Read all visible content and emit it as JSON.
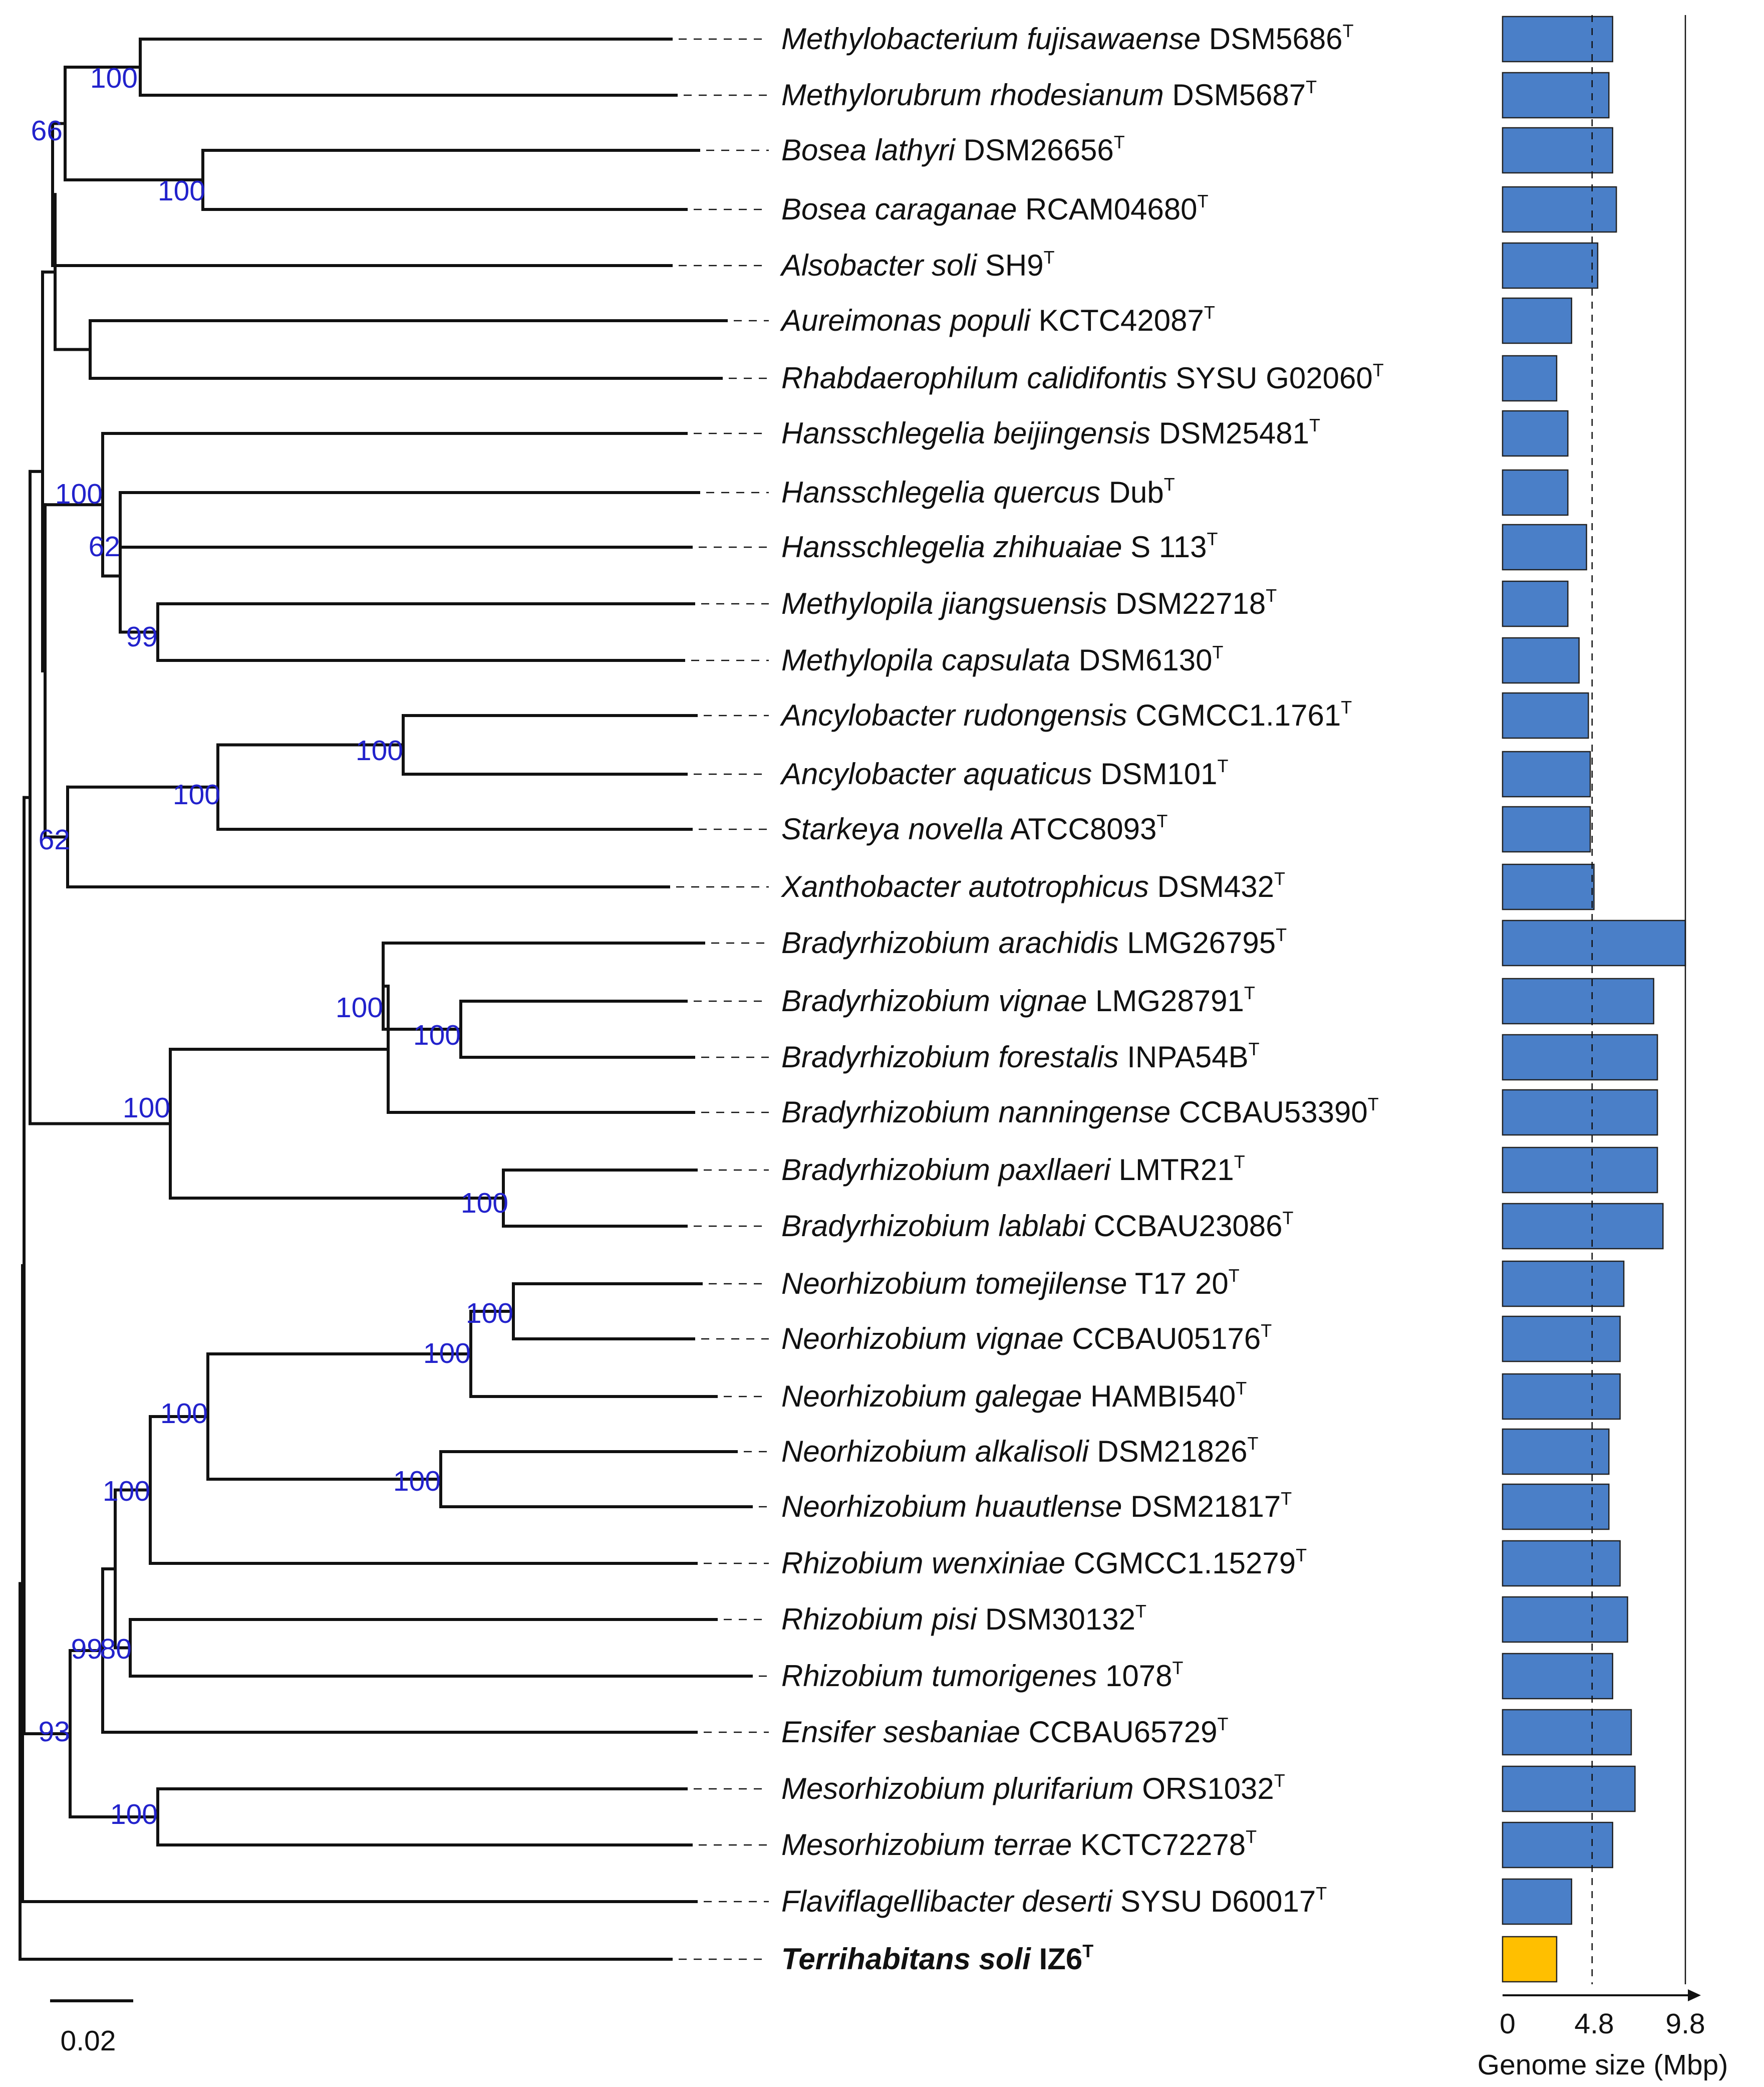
{
  "figure": {
    "scale_bar_label": "0.02",
    "bar_axis_label": "Genome size (Mbp)",
    "bar_ticks": [
      "0",
      "4.8",
      "9.8"
    ],
    "bar_reference_mbp": 4.8,
    "bar_max_mbp": 9.8,
    "default_bar_color": "#4a7fc8",
    "highlight_bar_color": "#ffbf00"
  },
  "taxa": [
    {
      "species": "Methylobacterium fujisawaense",
      "strain": "DSM5686",
      "type": "T",
      "genome_mbp": 5.9
    },
    {
      "species": "Methylorubrum rhodesianum",
      "strain": "DSM5687",
      "type": "T",
      "genome_mbp": 5.7
    },
    {
      "species": "Bosea lathyri",
      "strain": "DSM26656",
      "type": "T",
      "genome_mbp": 5.9
    },
    {
      "species": "Bosea caraganae",
      "strain": "RCAM04680",
      "type": "T",
      "genome_mbp": 6.1
    },
    {
      "species": "Alsobacter soli",
      "strain": "SH9",
      "type": "T",
      "genome_mbp": 5.1
    },
    {
      "species": "Aureimonas populi",
      "strain": "KCTC42087",
      "type": "T",
      "genome_mbp": 3.7
    },
    {
      "species": "Rhabdaerophilum calidifontis",
      "strain": "SYSU G02060",
      "type": "T",
      "genome_mbp": 2.9
    },
    {
      "species": "Hansschlegelia beijingensis",
      "strain": "DSM25481",
      "type": "T",
      "genome_mbp": 3.5
    },
    {
      "species": "Hansschlegelia quercus",
      "strain": "Dub",
      "type": "T",
      "genome_mbp": 3.5
    },
    {
      "species": "Hansschlegelia zhihuaiae",
      "strain": "S 113",
      "type": "T",
      "genome_mbp": 4.5
    },
    {
      "species": "Methylopila jiangsuensis",
      "strain": "DSM22718",
      "type": "T",
      "genome_mbp": 3.5
    },
    {
      "species": "Methylopila capsulata",
      "strain": "DSM6130",
      "type": "T",
      "genome_mbp": 4.1
    },
    {
      "species": "Ancylobacter rudongensis",
      "strain": "CGMCC1.1761",
      "type": "T",
      "genome_mbp": 4.6
    },
    {
      "species": "Ancylobacter aquaticus",
      "strain": "DSM101",
      "type": "T",
      "genome_mbp": 4.7
    },
    {
      "species": "Starkeya novella",
      "strain": "ATCC8093",
      "type": "T",
      "genome_mbp": 4.7
    },
    {
      "species": "Xanthobacter autotrophicus",
      "strain": "DSM432",
      "type": "T",
      "genome_mbp": 4.9
    },
    {
      "species": "Bradyrhizobium arachidis",
      "strain": "LMG26795",
      "type": "T",
      "genome_mbp": 9.8
    },
    {
      "species": "Bradyrhizobium vignae",
      "strain": "LMG28791",
      "type": "T",
      "genome_mbp": 8.1
    },
    {
      "species": "Bradyrhizobium forestalis",
      "strain": "INPA54B",
      "type": "T",
      "genome_mbp": 8.3
    },
    {
      "species": "Bradyrhizobium nanningense",
      "strain": "CCBAU53390",
      "type": "T",
      "genome_mbp": 8.3
    },
    {
      "species": "Bradyrhizobium paxllaeri",
      "strain": "LMTR21",
      "type": "T",
      "genome_mbp": 8.3
    },
    {
      "species": "Bradyrhizobium lablabi",
      "strain": "CCBAU23086",
      "type": "T",
      "genome_mbp": 8.6
    },
    {
      "species": "Neorhizobium tomejilense",
      "strain": "T17 20",
      "type": "T",
      "genome_mbp": 6.5
    },
    {
      "species": "Neorhizobium vignae",
      "strain": "CCBAU05176",
      "type": "T",
      "genome_mbp": 6.3
    },
    {
      "species": "Neorhizobium galegae",
      "strain": "HAMBI540",
      "type": "T",
      "genome_mbp": 6.3
    },
    {
      "species": "Neorhizobium alkalisoli",
      "strain": "DSM21826",
      "type": "T",
      "genome_mbp": 5.7
    },
    {
      "species": "Neorhizobium huautlense",
      "strain": "DSM21817",
      "type": "T",
      "genome_mbp": 5.7
    },
    {
      "species": "Rhizobium wenxiniae",
      "strain": "CGMCC1.15279",
      "type": "T",
      "genome_mbp": 6.3
    },
    {
      "species": "Rhizobium pisi",
      "strain": "DSM30132",
      "type": "T",
      "genome_mbp": 6.7
    },
    {
      "species": "Rhizobium tumorigenes",
      "strain": "1078",
      "type": "T",
      "genome_mbp": 5.9
    },
    {
      "species": "Ensifer sesbaniae",
      "strain": "CCBAU65729",
      "type": "T",
      "genome_mbp": 6.9
    },
    {
      "species": "Mesorhizobium plurifarium",
      "strain": "ORS1032",
      "type": "T",
      "genome_mbp": 7.1
    },
    {
      "species": "Mesorhizobium terrae",
      "strain": "KCTC72278",
      "type": "T",
      "genome_mbp": 5.9
    },
    {
      "species": "Flaviflagellibacter deserti",
      "strain": "SYSU D60017",
      "type": "T",
      "genome_mbp": 3.7
    },
    {
      "species": "Terrihabitans soli",
      "strain": "IZ6",
      "type": "T",
      "genome_mbp": 2.9,
      "highlight": true
    }
  ],
  "bootstrap": [
    "100",
    "66",
    "100",
    "100",
    "62",
    "99",
    "100",
    "100",
    "62",
    "100",
    "100",
    "100",
    "100",
    "100",
    "100",
    "100",
    "100",
    "100",
    "99",
    "80",
    "93",
    "100"
  ]
}
